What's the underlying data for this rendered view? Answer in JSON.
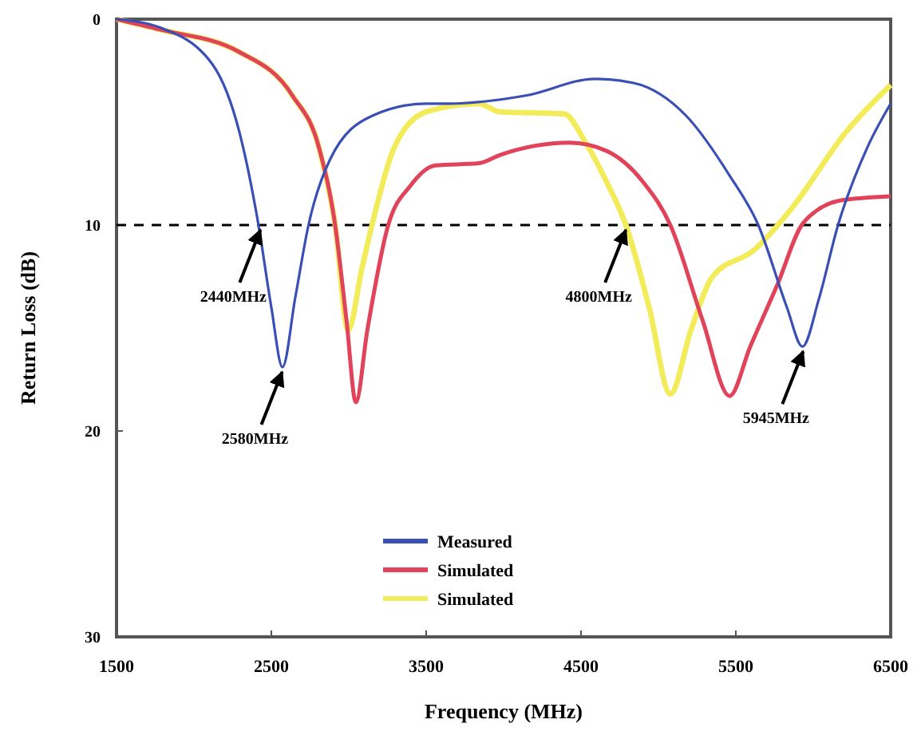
{
  "chart_data": {
    "type": "line",
    "xlabel": "Frequency (MHz)",
    "ylabel": "Return Loss (dB)",
    "xlim": [
      1500,
      6500
    ],
    "xticks": [
      1500,
      2500,
      3500,
      4500,
      5500,
      6500
    ],
    "ylim": [
      30,
      0
    ],
    "yticks": [
      0,
      10,
      20,
      30
    ],
    "grid": false,
    "legend": "bottom",
    "marker": "none",
    "line_style": "solid",
    "series": [
      {
        "name": "Measured",
        "color": "#3a4fb5",
        "x": [
          1500,
          1778,
          2120,
          2294,
          2417,
          2500,
          2572,
          2655,
          2740,
          2880,
          3150,
          3500,
          3634,
          4150,
          4590,
          4840,
          5180,
          5460,
          5645,
          5830,
          5930,
          6036,
          6160,
          6345,
          6500
        ],
        "values": [
          0,
          0.4,
          2.2,
          5.5,
          10,
          14,
          16.9,
          13.5,
          10,
          6.8,
          4.7,
          4.1,
          4.1,
          3.7,
          2.9,
          3.1,
          4.7,
          7.6,
          10,
          14,
          15.9,
          13.6,
          10,
          6.3,
          4.1
        ]
      },
      {
        "name": "Simulated",
        "color": "#e0435a",
        "x": [
          1500,
          1778,
          2294,
          2635,
          2810,
          2912,
          2985,
          3046,
          3120,
          3255,
          3397,
          3560,
          3840,
          3975,
          4428,
          4665,
          4900,
          5077,
          5284,
          5460,
          5593,
          5768,
          5935,
          6180,
          6500
        ],
        "values": [
          0,
          0.5,
          1.6,
          3.7,
          6.3,
          10,
          14.6,
          18.6,
          15.1,
          10,
          8.1,
          7.1,
          7.0,
          6.6,
          6.0,
          6.4,
          7.9,
          10,
          14.6,
          18.3,
          15.9,
          12.9,
          9.9,
          8.8,
          8.6
        ]
      },
      {
        "name": "Simulated",
        "color": "#f2ec5a",
        "x": [
          1500,
          1778,
          2294,
          2635,
          2810,
          2912,
          2995,
          3088,
          3150,
          3290,
          3500,
          3840,
          3975,
          4390,
          4530,
          4665,
          4790,
          4940,
          5077,
          5210,
          5350,
          5620,
          5870,
          6210,
          6500
        ],
        "values": [
          0,
          0.5,
          1.6,
          3.7,
          6.3,
          10,
          15.1,
          12,
          10,
          6.3,
          4.5,
          4.1,
          4.5,
          4.6,
          6.0,
          7.9,
          10,
          14,
          18.2,
          15.1,
          12.5,
          11.2,
          9.1,
          5.5,
          3.2
        ]
      }
    ],
    "ref_lines": [
      {
        "axis": "y",
        "value": 10,
        "line_style": "dashed",
        "color": "#000000"
      }
    ],
    "annotations": [
      {
        "text": "2440MHz",
        "x": 2440,
        "y": 10
      },
      {
        "text": "2580MHz",
        "x": 2580,
        "y": 16.9
      },
      {
        "text": "4800MHz",
        "x": 4800,
        "y": 10
      },
      {
        "text": "5945MHz",
        "x": 5945,
        "y": 15.9
      }
    ]
  }
}
